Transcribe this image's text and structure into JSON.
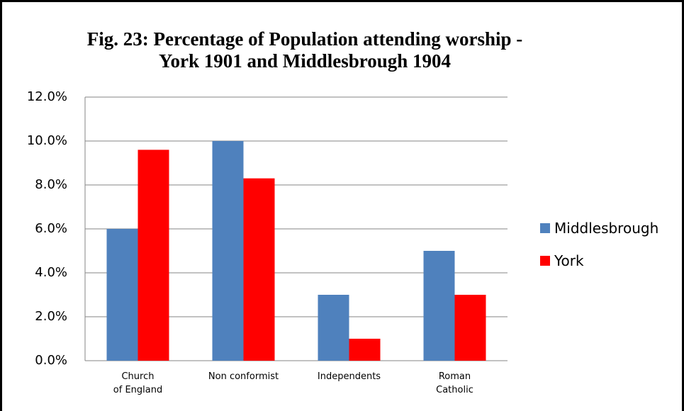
{
  "chart_data": {
    "type": "bar",
    "title": "Fig. 23: Percentage of Population attending worship -\nYork 1901 and Middlesbrough 1904",
    "categories": [
      "Church\nof England",
      "Non conformist",
      "Independents",
      "Roman\nCatholic"
    ],
    "series": [
      {
        "name": "Middlesbrough",
        "color": "#4f81bd",
        "values": [
          6,
          10,
          3,
          5
        ]
      },
      {
        "name": "York",
        "color": "#ff0000",
        "values": [
          9.6,
          8.3,
          1,
          3
        ]
      }
    ],
    "ylim": [
      0,
      12
    ],
    "yticks": [
      {
        "value": 0,
        "label": "0.0%"
      },
      {
        "value": 2,
        "label": "2.0%"
      },
      {
        "value": 4,
        "label": "4.0%"
      },
      {
        "value": 6,
        "label": "6.0%"
      },
      {
        "value": 8,
        "label": "8.0%"
      },
      {
        "value": 10,
        "label": "10.0%"
      },
      {
        "value": 12,
        "label": "12.0%"
      }
    ],
    "grid": true,
    "legend": "right"
  }
}
